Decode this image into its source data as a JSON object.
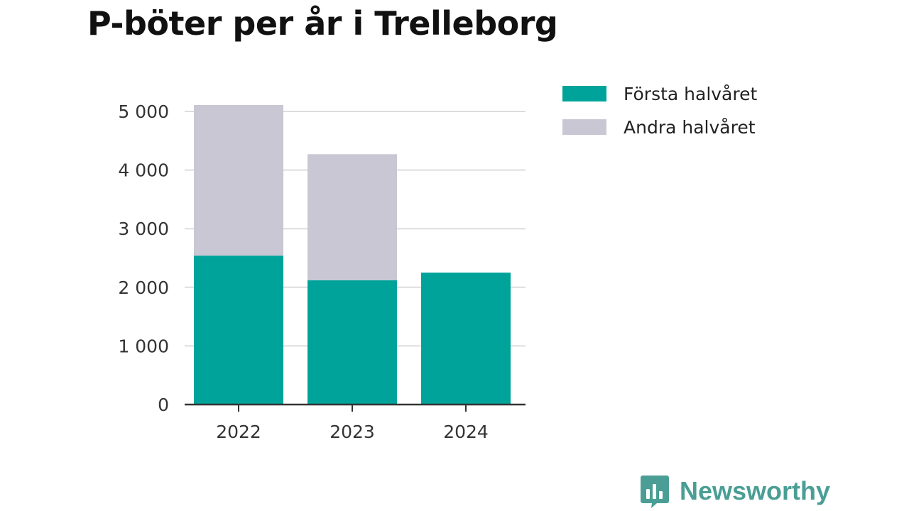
{
  "chart_data": {
    "type": "bar",
    "stacked": true,
    "title": "P-böter per år i Trelleborg",
    "xlabel": "",
    "ylabel": "",
    "categories": [
      "2022",
      "2023",
      "2024"
    ],
    "series": [
      {
        "name": "Första halvåret",
        "color": "#00a39a",
        "values": [
          2540,
          2120,
          2250
        ]
      },
      {
        "name": "Andra halvåret",
        "color": "#c8c7d3",
        "values": [
          2570,
          2150,
          0
        ]
      }
    ],
    "ylim": [
      0,
      5000
    ],
    "yticks": [
      0,
      1000,
      2000,
      3000,
      4000,
      5000
    ],
    "ytick_labels": [
      "0",
      "1 000",
      "2 000",
      "3 000",
      "4 000",
      "5 000"
    ],
    "grid": true,
    "legend_position": "right"
  },
  "brand": {
    "name": "Newsworthy",
    "logo_icon": "bar-chart-speech-bubble-icon",
    "color": "#4a9e95"
  }
}
